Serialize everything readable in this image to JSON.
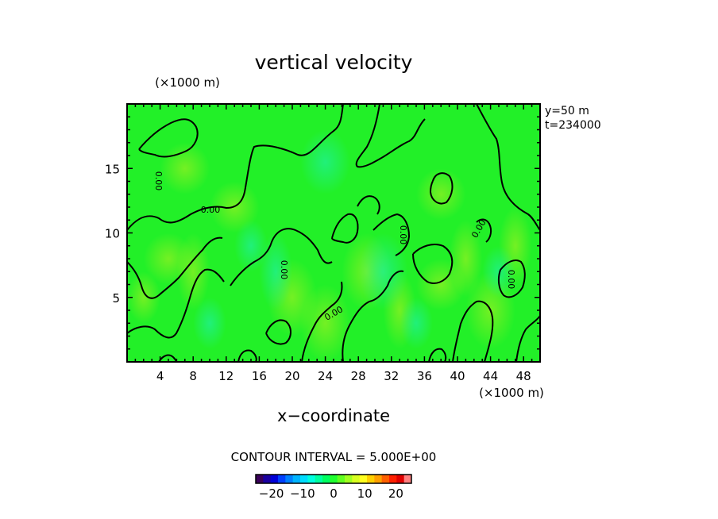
{
  "chart_data": {
    "type": "heatmap",
    "title": "vertical velocity",
    "xlabel": "x−coordinate",
    "x_unit": "(×1000 m)",
    "y_unit": "(×1000 m)",
    "xlim": [
      0,
      50
    ],
    "ylim": [
      0,
      20
    ],
    "x_ticks": [
      4,
      8,
      12,
      16,
      20,
      24,
      28,
      32,
      36,
      40,
      44,
      48
    ],
    "y_ticks": [
      5,
      10,
      15
    ],
    "annotations": [
      "y=50  m",
      "t=234000"
    ],
    "contour_interval_label": "CONTOUR INTERVAL = 5.000E+00",
    "contour_interval": 5.0,
    "contour_levels_shown": [
      0.0
    ],
    "contour_label_text": "0.00",
    "colorbar": {
      "ticks": [
        -20,
        -10,
        0,
        10,
        20
      ],
      "range": [
        -25,
        25
      ],
      "colors": [
        "#3a005a",
        "#1a00a0",
        "#0000d8",
        "#0040ff",
        "#0080ff",
        "#00b4ff",
        "#00dcff",
        "#00ffe0",
        "#00ffa0",
        "#00ff60",
        "#20ff30",
        "#60ff20",
        "#a0ff20",
        "#d8ff20",
        "#ffff20",
        "#ffd000",
        "#ffa000",
        "#ff6000",
        "#ff2000",
        "#e00000",
        "#ff8080"
      ]
    },
    "field_summary": "values mostly near 0 (green); weak positive updrafts (yellow-green) and weak negative (cyan-green)"
  }
}
